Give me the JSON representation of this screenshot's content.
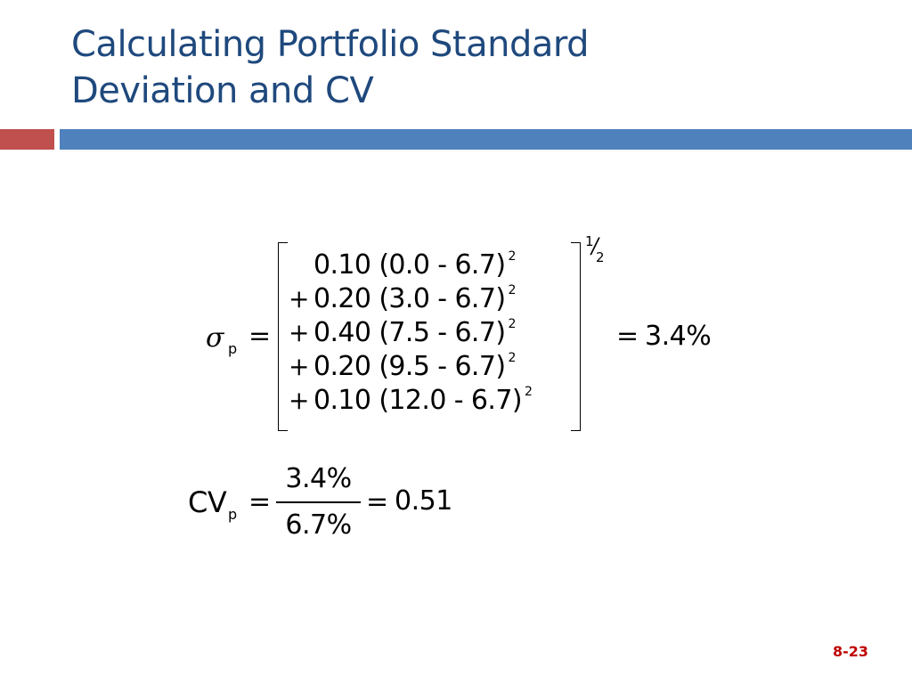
{
  "title": {
    "line1": "Calculating Portfolio Standard",
    "line2": "Deviation and CV"
  },
  "sigma_equation": {
    "symbol": "σ",
    "subscript": "p",
    "equals": "=",
    "exponent_numerator": "1",
    "exponent_denominator": "2",
    "terms": [
      {
        "op": "",
        "text": "0.10 (0.0 - 6.7)",
        "power": "2"
      },
      {
        "op": "+",
        "text": "0.20 (3.0 - 6.7)",
        "power": "2"
      },
      {
        "op": "+",
        "text": "0.40 (7.5 - 6.7)",
        "power": "2"
      },
      {
        "op": "+",
        "text": "0.20 (9.5 - 6.7)",
        "power": "2"
      },
      {
        "op": "+",
        "text": "0.10 (12.0 - 6.7)",
        "power": "2"
      }
    ],
    "result": "3.4%"
  },
  "cv_equation": {
    "symbol": "CV",
    "subscript": "p",
    "equals": "=",
    "numerator": "3.4%",
    "denominator": "6.7%",
    "result": "0.51"
  },
  "slide_number": "8-23",
  "colors": {
    "title": "#1f497d",
    "accent_red": "#c0504d",
    "accent_blue": "#4f81bd",
    "slide_number": "#c00000"
  }
}
